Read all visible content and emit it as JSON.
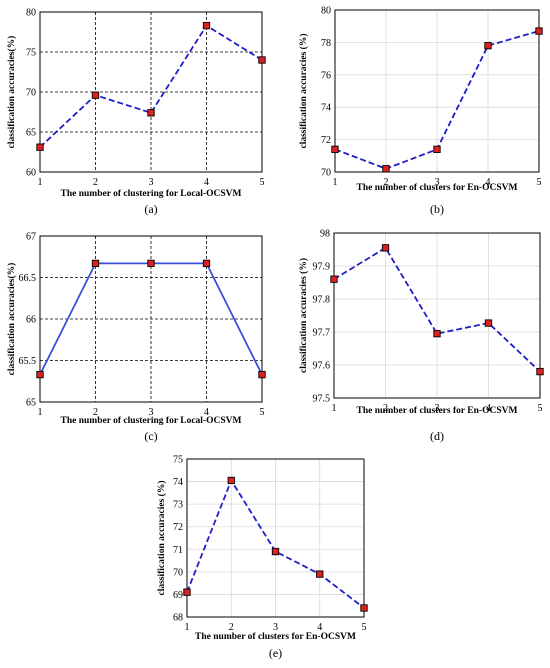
{
  "chart_data": [
    {
      "id": "a",
      "type": "line",
      "caption": "(a)",
      "xlabel": "The number of clustering for Local-OCSVM",
      "ylabel": "classification accuracies(%)",
      "x": [
        1,
        2,
        3,
        4,
        5
      ],
      "series": [
        {
          "values": [
            63.1,
            69.6,
            67.4,
            78.3,
            74.0
          ]
        }
      ],
      "xlim": [
        1,
        5
      ],
      "ylim": [
        60,
        80
      ],
      "xticks": [
        1,
        2,
        3,
        4,
        5
      ],
      "yticks": [
        60,
        65,
        70,
        75,
        80
      ],
      "grid": "dashed-black",
      "line_color": "#1f1fc8",
      "marker_color": "#e02020"
    },
    {
      "id": "b",
      "type": "line",
      "caption": "(b)",
      "xlabel": "The number of clusters for En-OCSVM",
      "ylabel": "classification accuracies (%)",
      "x": [
        1,
        2,
        3,
        4,
        5
      ],
      "series": [
        {
          "values": [
            71.4,
            70.2,
            71.4,
            77.8,
            78.7
          ]
        }
      ],
      "xlim": [
        1,
        5
      ],
      "ylim": [
        70,
        80
      ],
      "xticks": [
        1,
        2,
        3,
        4,
        5
      ],
      "yticks": [
        70,
        72,
        74,
        76,
        78,
        80
      ],
      "grid": "light-gray",
      "line_color": "#1f1fc8",
      "marker_color": "#e02020"
    },
    {
      "id": "c",
      "type": "line",
      "caption": "(c)",
      "xlabel": "The number of clustering for Local-OCSVM",
      "ylabel": "classification accuracies(%)",
      "x": [
        1,
        2,
        3,
        4,
        5
      ],
      "series": [
        {
          "values": [
            65.33,
            66.67,
            66.67,
            66.67,
            65.33
          ]
        }
      ],
      "xlim": [
        1,
        5
      ],
      "ylim": [
        65,
        67
      ],
      "xticks": [
        1,
        2,
        3,
        4,
        5
      ],
      "yticks": [
        65,
        65.5,
        66,
        66.5,
        67
      ],
      "grid": "dashed-black",
      "line_color": "#3b4fd8",
      "marker_color": "#e02020"
    },
    {
      "id": "d",
      "type": "line",
      "caption": "(d)",
      "xlabel": "The number of clusters for En-OCSVM",
      "ylabel": "classification accuracies (%)",
      "x": [
        1,
        2,
        3,
        4,
        5
      ],
      "series": [
        {
          "values": [
            97.86,
            97.955,
            97.695,
            97.727,
            97.58
          ]
        }
      ],
      "xlim": [
        1,
        5
      ],
      "ylim": [
        97.5,
        98
      ],
      "xticks": [
        1,
        2,
        3,
        4,
        5
      ],
      "yticks": [
        97.5,
        97.6,
        97.7,
        97.8,
        97.9,
        98
      ],
      "grid": "light-gray",
      "line_color": "#1f1fc8",
      "marker_color": "#e02020"
    },
    {
      "id": "e",
      "type": "line",
      "caption": "(e)",
      "xlabel": "The number of clusters for En-OCSVM",
      "ylabel": "classification accuracies (%)",
      "x": [
        1,
        2,
        3,
        4,
        5
      ],
      "series": [
        {
          "values": [
            69.1,
            74.05,
            70.9,
            69.9,
            68.4
          ]
        }
      ],
      "xlim": [
        1,
        5
      ],
      "ylim": [
        68,
        75
      ],
      "xticks": [
        1,
        2,
        3,
        4,
        5
      ],
      "yticks": [
        68,
        69,
        70,
        71,
        72,
        73,
        74,
        75
      ],
      "grid": "light-gray",
      "line_color": "#1f1fc8",
      "marker_color": "#e02020"
    }
  ]
}
